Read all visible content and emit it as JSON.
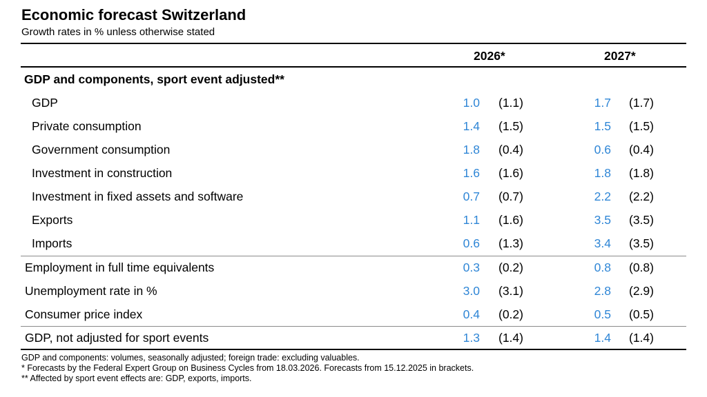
{
  "title": "Economic forecast Switzerland",
  "subtitle": "Growth rates in % unless otherwise stated",
  "columns": [
    "2026*",
    "2027*"
  ],
  "section_header": "GDP and components, sport event adjusted**",
  "rows": [
    {
      "label": "GDP",
      "v2026": "1.0",
      "p2026": "(1.1)",
      "v2027": "1.7",
      "p2027": "(1.7)"
    },
    {
      "label": "Private consumption",
      "v2026": "1.4",
      "p2026": "(1.5)",
      "v2027": "1.5",
      "p2027": "(1.5)"
    },
    {
      "label": "Government consumption",
      "v2026": "1.8",
      "p2026": "(0.4)",
      "v2027": "0.6",
      "p2027": "(0.4)"
    },
    {
      "label": "Investment in construction",
      "v2026": "1.6",
      "p2026": "(1.6)",
      "v2027": "1.8",
      "p2027": "(1.8)"
    },
    {
      "label": "Investment in fixed assets and software",
      "v2026": "0.7",
      "p2026": "(0.7)",
      "v2027": "2.2",
      "p2027": "(2.2)"
    },
    {
      "label": "Exports",
      "v2026": "1.1",
      "p2026": "(1.6)",
      "v2027": "3.5",
      "p2027": "(3.5)"
    },
    {
      "label": "Imports",
      "v2026": "0.6",
      "p2026": "(1.3)",
      "v2027": "3.4",
      "p2027": "(3.5)"
    },
    {
      "label": "Employment in full time equivalents",
      "v2026": "0.3",
      "p2026": "(0.2)",
      "v2027": "0.8",
      "p2027": "(0.8)"
    },
    {
      "label": "Unemployment rate in %",
      "v2026": "3.0",
      "p2026": "(3.1)",
      "v2027": "2.8",
      "p2027": "(2.9)"
    },
    {
      "label": "Consumer price index",
      "v2026": "0.4",
      "p2026": "(0.2)",
      "v2027": "0.5",
      "p2027": "(0.5)"
    },
    {
      "label": "GDP, not adjusted for sport events",
      "v2026": "1.3",
      "p2026": "(1.4)",
      "v2027": "1.4",
      "p2027": "(1.4)"
    }
  ],
  "footnotes": [
    "GDP and components: volumes, seasonally adjusted; foreign trade: excluding valuables.",
    "*  Forecasts by the Federal Expert Group on Business Cycles from 18.03.2026. Forecasts from 15.12.2025 in brackets.",
    "** Affected by sport event effects are: GDP, exports, imports."
  ],
  "colors": {
    "forecast_value": "#2f86d6",
    "text": "#000000",
    "rule_thin": "#8a8a8a"
  }
}
